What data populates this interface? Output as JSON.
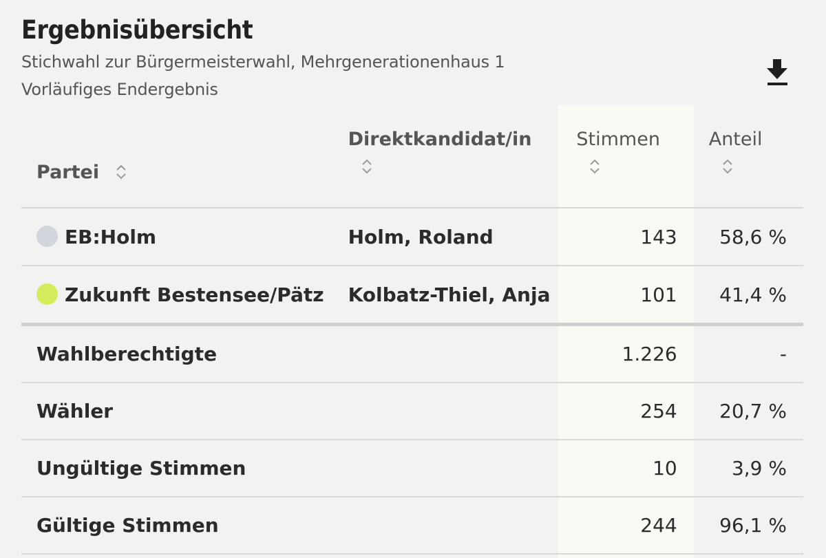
{
  "header": {
    "title": "Ergebnisübersicht",
    "subtitle_line1": "Stichwahl zur Bürgermeisterwahl, Mehrgenerationenhaus 1",
    "subtitle_line2": "Vorläufiges Endergebnis",
    "download_icon": "download-icon"
  },
  "table": {
    "columns": {
      "partei": "Partei",
      "kandidat": "Direktkandidat/in",
      "stimmen": "Stimmen",
      "anteil": "Anteil"
    },
    "sort_icon": "sort-updown-icon",
    "candidates": [
      {
        "party": "EB:Holm",
        "color": "#d3d5dd",
        "candidate": "Holm, Roland",
        "votes": "143",
        "share": "58,6 %"
      },
      {
        "party": "Zukunft Bestensee/Pätz",
        "color": "#d7ec5c",
        "candidate": "Kolbatz-Thiel, Anja",
        "votes": "101",
        "share": "41,4 %"
      }
    ],
    "stats": [
      {
        "label": "Wahlberechtigte",
        "votes": "1.226",
        "share": "-"
      },
      {
        "label": "Wähler",
        "votes": "254",
        "share": "20,7 %"
      },
      {
        "label": "Ungültige Stimmen",
        "votes": "10",
        "share": "3,9 %"
      },
      {
        "label": "Gültige Stimmen",
        "votes": "244",
        "share": "96,1 %"
      }
    ]
  }
}
